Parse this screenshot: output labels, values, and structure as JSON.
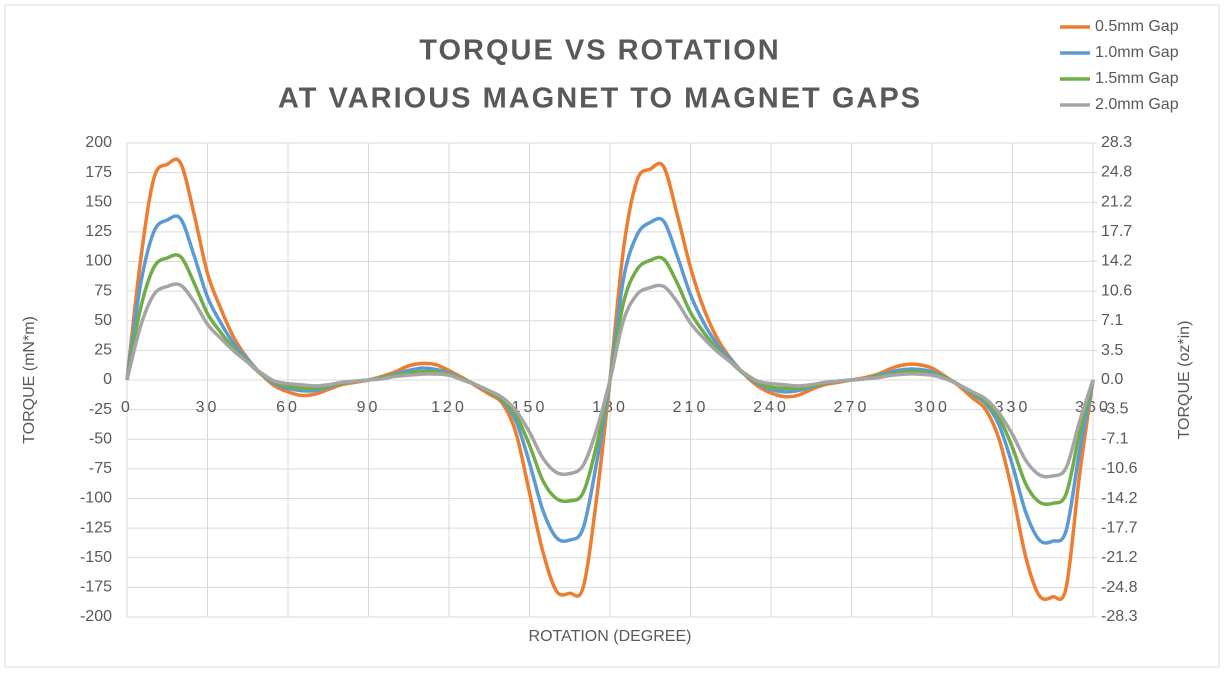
{
  "chart_data": {
    "type": "line",
    "title": [
      "TORQUE VS ROTATION",
      "AT VARIOUS MAGNET TO MAGNET GAPS"
    ],
    "xlabel": "ROTATION (DEGREE)",
    "ylabel": "TORQUE (mN*m)",
    "y2label": "TORQUE (oz*in)",
    "x": [
      0,
      5,
      10,
      15,
      20,
      25,
      30,
      35,
      40,
      45,
      50,
      55,
      60,
      65,
      70,
      75,
      80,
      85,
      90,
      95,
      100,
      105,
      110,
      115,
      120,
      125,
      130,
      135,
      140,
      145,
      150,
      155,
      160,
      165,
      170,
      175,
      180,
      185,
      190,
      195,
      200,
      205,
      210,
      215,
      220,
      225,
      230,
      235,
      240,
      245,
      250,
      255,
      260,
      265,
      270,
      275,
      280,
      285,
      290,
      295,
      300,
      305,
      310,
      315,
      320,
      325,
      330,
      335,
      340,
      345,
      350,
      355,
      360
    ],
    "xlim": [
      0,
      360
    ],
    "xticks": [
      0,
      30,
      60,
      90,
      120,
      150,
      180,
      210,
      240,
      270,
      300,
      330,
      360
    ],
    "ylim": [
      -200,
      200
    ],
    "yticks": [
      200,
      175,
      150,
      125,
      100,
      75,
      50,
      25,
      0,
      -25,
      -50,
      -75,
      -100,
      -125,
      -150,
      -175,
      -200
    ],
    "y2lim": [
      -28.3,
      28.3
    ],
    "y2ticks": [
      28.3,
      24.8,
      21.2,
      17.7,
      14.2,
      10.6,
      7.1,
      3.5,
      {
        "value": 0,
        "label": "0.0"
      },
      -3.5,
      -7.1,
      -10.6,
      -14.2,
      -17.7,
      -21.2,
      -24.8,
      -28.3
    ],
    "grid": true,
    "legend": "top-right",
    "series": [
      {
        "name": "0.5mm Gap",
        "color": "#ed7d31",
        "values": [
          0,
          100,
          170,
          182,
          183,
          140,
          90,
          60,
          35,
          18,
          5,
          -5,
          -10,
          -13,
          -12,
          -8,
          -4,
          -2,
          0,
          3,
          7,
          12,
          14,
          13,
          8,
          2,
          -5,
          -12,
          -20,
          -45,
          -95,
          -145,
          -178,
          -180,
          -175,
          -100,
          0,
          110,
          168,
          178,
          180,
          140,
          95,
          60,
          35,
          18,
          5,
          -5,
          -11,
          -14,
          -13,
          -8,
          -4,
          -2,
          0,
          2,
          5,
          10,
          13,
          13,
          10,
          3,
          -5,
          -15,
          -25,
          -50,
          -95,
          -150,
          -182,
          -183,
          -175,
          -80,
          0
        ]
      },
      {
        "name": "1.0mm Gap",
        "color": "#5b9bd5",
        "values": [
          0,
          80,
          125,
          135,
          136,
          105,
          70,
          48,
          30,
          17,
          5,
          -3,
          -7,
          -9,
          -9,
          -6,
          -3,
          -1,
          0,
          2,
          5,
          8,
          10,
          9,
          6,
          1,
          -4,
          -10,
          -18,
          -35,
          -70,
          -110,
          -133,
          -135,
          -125,
          -70,
          0,
          85,
          122,
          133,
          134,
          105,
          72,
          48,
          30,
          17,
          5,
          -3,
          -8,
          -10,
          -9,
          -6,
          -3,
          -1,
          0,
          1,
          4,
          7,
          9,
          9,
          7,
          2,
          -4,
          -12,
          -20,
          -38,
          -72,
          -112,
          -135,
          -136,
          -127,
          -60,
          0
        ]
      },
      {
        "name": "1.5mm Gap",
        "color": "#70ad47",
        "values": [
          0,
          60,
          95,
          103,
          104,
          82,
          56,
          40,
          26,
          15,
          5,
          -2,
          -5,
          -7,
          -7,
          -5,
          -3,
          -1,
          0,
          2,
          4,
          6,
          7,
          7,
          5,
          1,
          -4,
          -10,
          -17,
          -30,
          -55,
          -85,
          -100,
          -102,
          -95,
          -55,
          0,
          65,
          93,
          101,
          102,
          82,
          57,
          40,
          26,
          15,
          5,
          -2,
          -6,
          -7,
          -7,
          -5,
          -3,
          -1,
          0,
          1,
          3,
          5,
          7,
          7,
          5,
          2,
          -4,
          -11,
          -18,
          -32,
          -57,
          -88,
          -103,
          -104,
          -96,
          -45,
          0
        ]
      },
      {
        "name": "2.0mm Gap",
        "color": "#a5a5a5",
        "values": [
          0,
          45,
          72,
          79,
          80,
          66,
          47,
          35,
          24,
          15,
          6,
          -1,
          -3,
          -4,
          -5,
          -4,
          -2,
          -1,
          0,
          1,
          3,
          4,
          5,
          5,
          4,
          0,
          -4,
          -9,
          -15,
          -26,
          -44,
          -66,
          -78,
          -79,
          -72,
          -42,
          0,
          50,
          72,
          78,
          79,
          66,
          48,
          35,
          24,
          15,
          6,
          -1,
          -3,
          -4,
          -5,
          -4,
          -2,
          -1,
          0,
          1,
          2,
          4,
          5,
          5,
          4,
          1,
          -4,
          -10,
          -16,
          -28,
          -46,
          -68,
          -80,
          -81,
          -74,
          -35,
          0
        ]
      }
    ]
  }
}
